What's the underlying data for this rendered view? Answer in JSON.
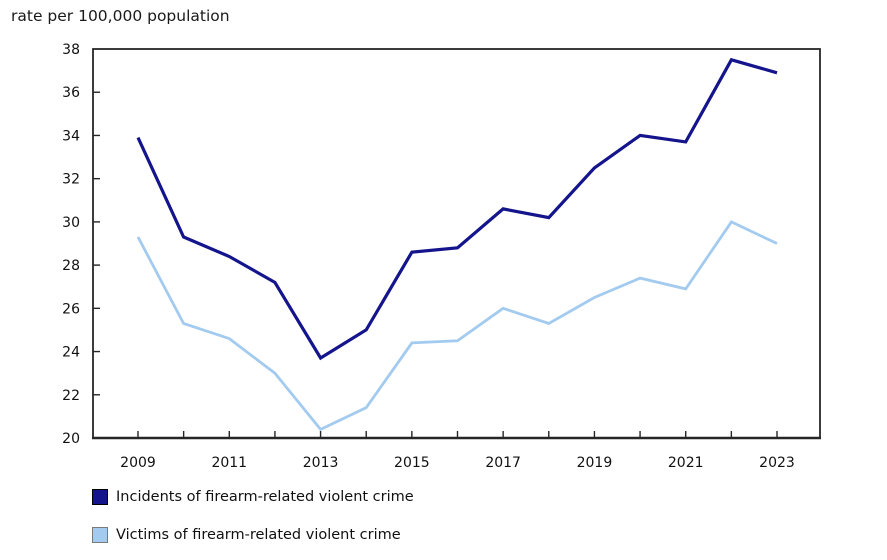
{
  "chart_data": {
    "type": "line",
    "title": "rate per 100,000 population",
    "x": [
      2009,
      2010,
      2011,
      2012,
      2013,
      2014,
      2015,
      2016,
      2017,
      2018,
      2019,
      2020,
      2021,
      2022,
      2023
    ],
    "series": [
      {
        "name": "Incidents of firearm-related violent crime",
        "color": "#14148C",
        "values": [
          33.9,
          29.3,
          28.4,
          27.2,
          23.7,
          25.0,
          28.6,
          28.8,
          30.6,
          30.2,
          32.5,
          34.0,
          33.7,
          37.5,
          36.9
        ]
      },
      {
        "name": "Victims of firearm-related violent crime",
        "color": "#A3CBF0",
        "values": [
          29.3,
          25.3,
          24.6,
          23.0,
          20.4,
          21.4,
          24.4,
          24.5,
          26.0,
          25.3,
          26.5,
          27.4,
          26.9,
          30.0,
          29.0
        ]
      }
    ],
    "ylim": [
      20,
      38
    ],
    "ytick_step": 2,
    "xtick_label_every": 2,
    "grid": false,
    "legend_position": "bottom-left",
    "axis_color": "#262626"
  }
}
